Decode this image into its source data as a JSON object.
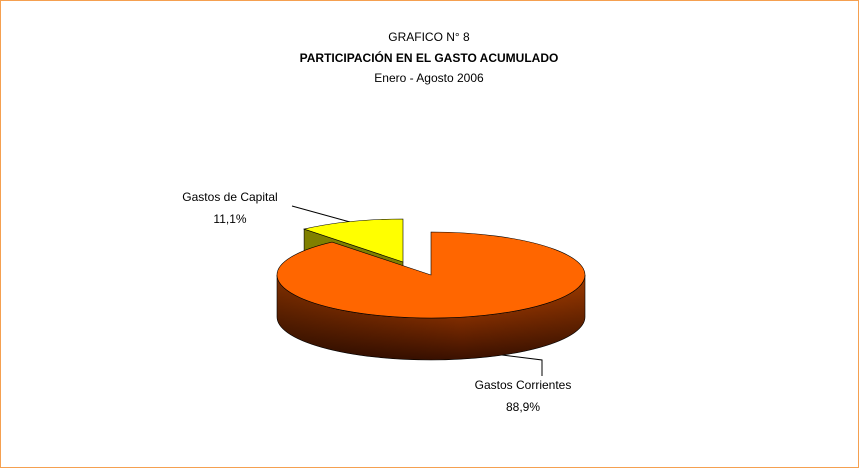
{
  "chart_data": {
    "type": "pie",
    "chart_number": "GRAFICO N° 8",
    "title": "PARTICIPACIÓN EN EL GASTO ACUMULADO",
    "subtitle": "Enero - Agosto 2006",
    "categories": [
      "Gastos Corrientes",
      "Gastos de Capital"
    ],
    "values": [
      88.9,
      11.1
    ],
    "value_labels": [
      "88,9%",
      "11,1%"
    ],
    "colors": [
      "#ff6600",
      "#ffff00"
    ]
  }
}
